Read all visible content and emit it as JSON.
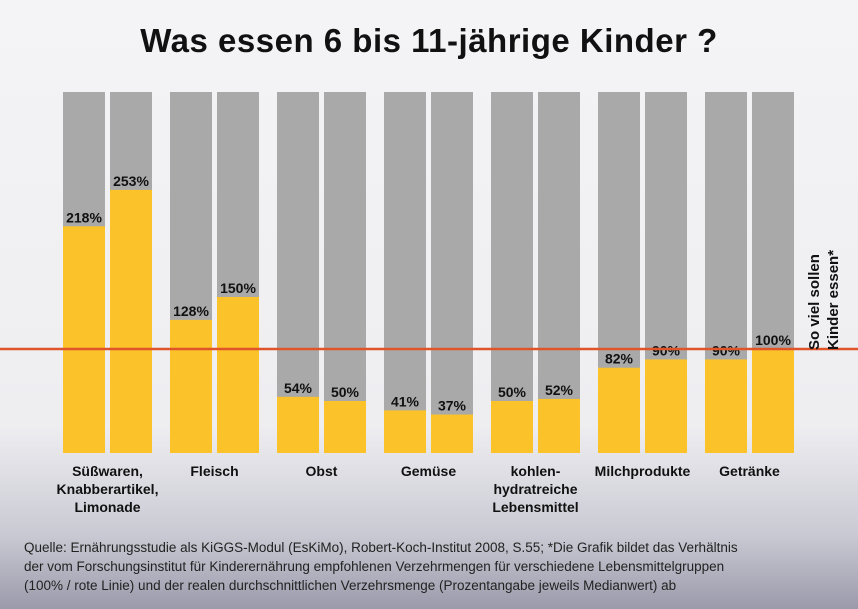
{
  "chart_data": {
    "type": "bar",
    "title": "Was essen 6 bis 11-jährige Kinder ?",
    "categories": [
      "Süßwaren, Knabberartikel, Limonade",
      "Fleisch",
      "Obst",
      "Gemüse",
      "kohlen-hydratreiche Lebensmittel",
      "Milchprodukte",
      "Getränke"
    ],
    "series": [
      {
        "values": [
          218,
          128,
          54,
          41,
          50,
          82,
          90
        ]
      },
      {
        "values": [
          253,
          150,
          50,
          37,
          52,
          90,
          100
        ]
      }
    ],
    "value_suffix": "%",
    "reference_line": {
      "value": 100,
      "label": "So viel sollen Kinder essen*",
      "color": "#e0542a"
    },
    "colors": {
      "fill": "#fbc22a",
      "background_bar": "#a9a9a9"
    },
    "grid": false
  },
  "category_lines": [
    [
      "Süßwaren,",
      "Knabberartikel,",
      "Limonade"
    ],
    [
      "Fleisch"
    ],
    [
      "Obst"
    ],
    [
      "Gemüse"
    ],
    [
      "kohlen-",
      "hydratreiche",
      "Lebensmittel"
    ],
    [
      "Milchprodukte"
    ],
    [
      "Getränke"
    ]
  ],
  "side_label": [
    "So viel sollen",
    "Kinder essen*"
  ],
  "footer": [
    "Quelle: Ernährungsstudie als KiGGS-Modul (EsKiMo), Robert-Koch-Institut 2008, S.55; *Die Grafik bildet das Verhältnis",
    "der vom Forschungsinstitut für Kinderernährung empfohlenen Verzehrmengen für verschiedene Lebensmittelgruppen",
    "(100% / rote Linie) und der realen durchschnittlichen Verzehrsmenge (Prozentangabe jeweils Medianwert) ab"
  ]
}
